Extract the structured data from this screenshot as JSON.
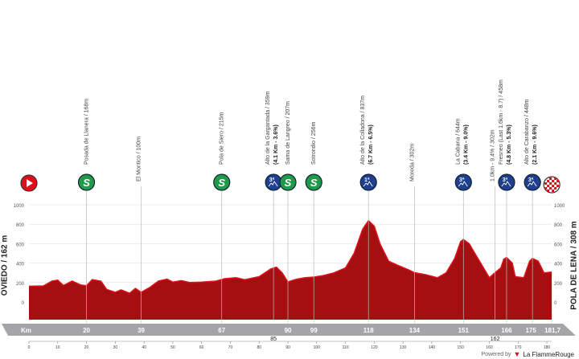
{
  "chart_data": {
    "type": "area",
    "start_label": "OVIEDO / 162 m",
    "finish_label": "POLA DE LENA / 308 m",
    "xunit": "Km",
    "ylim": [
      0,
      1000
    ],
    "yticks": [
      0,
      200,
      400,
      600,
      800,
      1000
    ],
    "xlim": [
      0,
      181.7
    ],
    "xticks": [
      0,
      10,
      20,
      30,
      40,
      50,
      60,
      70,
      80,
      90,
      100,
      110,
      120,
      130,
      140,
      150,
      160,
      170,
      180
    ],
    "km_markers": [
      "20",
      "39",
      "67",
      "90",
      "99",
      "118",
      "134",
      "151",
      "166",
      "175",
      "181,7"
    ],
    "km_markers_below": [
      "85",
      "162"
    ],
    "colors": {
      "profile": "#a50f12",
      "profile_highlight": "#e0101a",
      "sprint": "#1f9a4a",
      "kom": "#1f3f8f",
      "start": "#e0101a",
      "bar": "#a3a5a8"
    },
    "profile": [
      [
        0,
        162
      ],
      [
        5,
        165
      ],
      [
        8,
        215
      ],
      [
        10,
        225
      ],
      [
        12,
        170
      ],
      [
        15,
        215
      ],
      [
        18,
        175
      ],
      [
        20,
        168
      ],
      [
        22,
        230
      ],
      [
        25,
        215
      ],
      [
        27,
        130
      ],
      [
        30,
        100
      ],
      [
        32,
        125
      ],
      [
        35,
        90
      ],
      [
        37,
        140
      ],
      [
        39,
        100
      ],
      [
        42,
        150
      ],
      [
        45,
        215
      ],
      [
        48,
        235
      ],
      [
        50,
        205
      ],
      [
        53,
        220
      ],
      [
        56,
        200
      ],
      [
        60,
        205
      ],
      [
        65,
        215
      ],
      [
        68,
        240
      ],
      [
        72,
        250
      ],
      [
        75,
        230
      ],
      [
        80,
        260
      ],
      [
        84,
        340
      ],
      [
        86,
        359
      ],
      [
        88,
        300
      ],
      [
        90,
        207
      ],
      [
        93,
        235
      ],
      [
        96,
        250
      ],
      [
        99,
        256
      ],
      [
        102,
        270
      ],
      [
        106,
        300
      ],
      [
        110,
        350
      ],
      [
        113,
        500
      ],
      [
        116,
        750
      ],
      [
        118,
        837
      ],
      [
        120,
        780
      ],
      [
        122,
        600
      ],
      [
        125,
        420
      ],
      [
        128,
        380
      ],
      [
        132,
        330
      ],
      [
        134,
        302
      ],
      [
        138,
        280
      ],
      [
        142,
        250
      ],
      [
        145,
        300
      ],
      [
        148,
        450
      ],
      [
        150,
        620
      ],
      [
        151,
        644
      ],
      [
        153,
        600
      ],
      [
        156,
        450
      ],
      [
        158,
        350
      ],
      [
        160,
        250
      ],
      [
        162,
        302
      ],
      [
        164,
        350
      ],
      [
        165,
        440
      ],
      [
        166,
        458
      ],
      [
        168,
        400
      ],
      [
        169,
        260
      ],
      [
        172,
        250
      ],
      [
        174,
        420
      ],
      [
        175,
        448
      ],
      [
        177,
        420
      ],
      [
        179,
        300
      ],
      [
        181.7,
        308
      ]
    ],
    "points": [
      {
        "km": 20,
        "type": "sprint",
        "icon": "S",
        "name": "Posada de Llanera / 168m",
        "detail": ""
      },
      {
        "km": 39,
        "type": "place",
        "icon": "",
        "name": "El Montico / 100m",
        "detail": ""
      },
      {
        "km": 67,
        "type": "sprint",
        "icon": "S",
        "name": "Pola de Siero / 215m",
        "detail": ""
      },
      {
        "km": 85,
        "type": "kom",
        "icon": "3ª",
        "name": "Alto de la Gargantada / 359m",
        "detail": "(4.1 Km - 3.6%)"
      },
      {
        "km": 90,
        "type": "sprint",
        "icon": "S",
        "name": "Sama de Langreo / 207m",
        "detail": ""
      },
      {
        "km": 99,
        "type": "sprint",
        "icon": "S",
        "name": "Sotrondio / 256m",
        "detail": ""
      },
      {
        "km": 118,
        "type": "kom",
        "icon": "1ª",
        "name": "Alto de la Colladona / 837m",
        "detail": "(6.7 Km - 6.5%)"
      },
      {
        "km": 134,
        "type": "place",
        "icon": "",
        "name": "Moreda / 302m",
        "detail": ""
      },
      {
        "km": 151,
        "type": "kom",
        "icon": "3ª",
        "name": "La Cabana / 644m",
        "detail": "(3.4 Km - 9.0%)"
      },
      {
        "km": 162,
        "type": "place",
        "icon": "",
        "name": "1.0km - 9.4% / 302m",
        "detail": ""
      },
      {
        "km": 166,
        "type": "kom",
        "icon": "3ª",
        "name": "Fresneo (Last 1.6km - 8.7) / 458m",
        "detail": "(4.8 Km - 5.3%)"
      },
      {
        "km": 175,
        "type": "kom",
        "icon": "3ª",
        "name": "Alto de Carabanzo / 448m",
        "detail": "(2.1 Km - 9.6%)"
      }
    ]
  },
  "footer": {
    "powered_by": "Powered by",
    "brand": "La FlammeRouge"
  }
}
